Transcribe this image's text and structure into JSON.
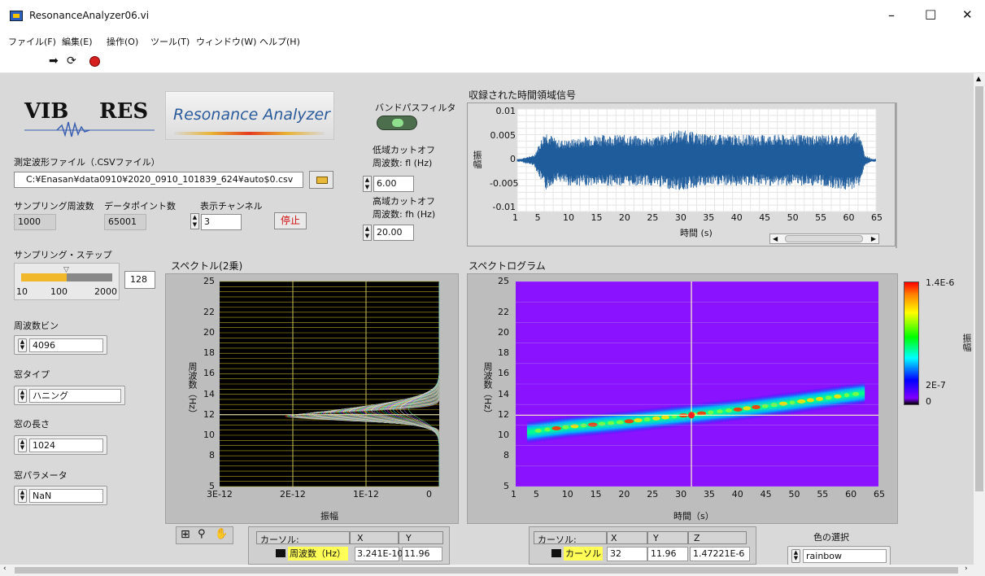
{
  "window": {
    "title": "ResonanceAnalyzer06.vi",
    "minimize": "–",
    "maximize": "□",
    "close": "✕"
  },
  "menu": [
    "ファイル(F)",
    "編集(E)",
    "操作(O)",
    "ツール(T)",
    "ウィンドウ(W)",
    "ヘルプ(H)"
  ],
  "logo": {
    "text_left": "VIB",
    "text_right": "RES",
    "banner": "Resonance Analyzer"
  },
  "file": {
    "label": "測定波形ファイル（.CSVファイル）",
    "path": "C:¥Enasan¥data0910¥2020_0910_101839_624¥auto$0.csv"
  },
  "sampling_rate": {
    "label": "サンプリング周波数",
    "value": "1000"
  },
  "data_points": {
    "label": "データポイント数",
    "value": "65001"
  },
  "display_channel": {
    "label": "表示チャンネル",
    "value": "3"
  },
  "stop_button": "停止",
  "bandpass": {
    "label": "バンドパスフィルタ",
    "low_label1": "低域カットオフ",
    "low_label2": "周波数: fl (Hz)",
    "low_value": "6.00",
    "high_label1": "高域カットオフ",
    "high_label2": "周波数: fh (Hz)",
    "high_value": "20.00"
  },
  "sampling_step": {
    "label": "サンプリング・ステップ",
    "value": "128",
    "ticks": [
      "10",
      "100",
      "2000"
    ],
    "fill_fraction": 0.5
  },
  "freq_bin": {
    "label": "周波数ビン",
    "value": "4096"
  },
  "window_type": {
    "label": "窓タイプ",
    "value": "ハニング"
  },
  "window_length": {
    "label": "窓の長さ",
    "value": "1024"
  },
  "window_param": {
    "label": "窓パラメータ",
    "value": "NaN"
  },
  "time_chart": {
    "title": "収録された時間領域信号",
    "ylabel": "振幅",
    "xlabel": "時間 (s)",
    "y_ticks": [
      "0.01",
      "0.005",
      "0",
      "-0.005",
      "-0.01"
    ],
    "x_ticks": [
      "1",
      "5",
      "10",
      "15",
      "20",
      "25",
      "30",
      "35",
      "40",
      "45",
      "50",
      "55",
      "60",
      "65"
    ]
  },
  "spectrum_chart": {
    "title": "スペクトル(2乗)",
    "ylabel": "周波数（Hz）",
    "xlabel": "振幅",
    "y_ticks": [
      "25",
      "22",
      "20",
      "18",
      "16",
      "14",
      "12",
      "10",
      "8",
      "5"
    ],
    "x_ticks": [
      "3E-12",
      "2E-12",
      "1E-12",
      "0"
    ]
  },
  "spectrogram": {
    "title": "スペクトログラム",
    "ylabel": "周波数（Hz）",
    "xlabel": "時間（s）",
    "y_ticks": [
      "25",
      "22",
      "20",
      "18",
      "16",
      "14",
      "12",
      "10",
      "8",
      "5"
    ],
    "x_ticks": [
      "1",
      "5",
      "10",
      "15",
      "20",
      "25",
      "30",
      "35",
      "40",
      "45",
      "50",
      "55",
      "60",
      "65"
    ],
    "colorbar_ticks": [
      "1.4E-6",
      "2E-7",
      "0"
    ],
    "colorbar_label": "振幅"
  },
  "cursor1": {
    "h_cursor": "カーソル:",
    "h_x": "X",
    "h_y": "Y",
    "name": "周波数（Hz）",
    "x": "3.241E-10",
    "y": "11.96"
  },
  "cursor2": {
    "h_cursor": "カーソル:",
    "h_x": "X",
    "h_y": "Y",
    "h_z": "Z",
    "name": "カーソル",
    "x": "32",
    "y": "11.96",
    "z": "1.47221E-6"
  },
  "color_select": {
    "label": "色の選択",
    "value": "rainbow"
  },
  "chart_data": [
    {
      "type": "line",
      "title": "収録された時間領域信号",
      "xlabel": "時間 (s)",
      "ylabel": "振幅",
      "xlim": [
        1,
        65
      ],
      "ylim": [
        -0.01,
        0.01
      ],
      "series": [
        {
          "x": [
            2,
            4,
            6,
            8,
            10,
            15,
            20,
            25,
            30,
            35,
            40,
            45,
            50,
            55,
            60,
            62,
            63,
            64
          ],
          "y_max": [
            0.0005,
            0.001,
            0.006,
            0.004,
            0.004,
            0.005,
            0.005,
            0.0045,
            0.006,
            0.005,
            0.005,
            0.005,
            0.005,
            0.005,
            0.005,
            0.006,
            0.001,
            0.0005
          ],
          "y_min": [
            -0.0005,
            -0.001,
            -0.006,
            -0.004,
            -0.005,
            -0.005,
            -0.005,
            -0.005,
            -0.006,
            -0.005,
            -0.005,
            -0.005,
            -0.005,
            -0.005,
            -0.006,
            -0.005,
            -0.001,
            -0.0005
          ]
        }
      ]
    },
    {
      "type": "line",
      "title": "スペクトル(2乗)",
      "xlabel": "振幅",
      "ylabel": "周波数（Hz）",
      "xlim": [
        3e-12,
        0
      ],
      "ylim": [
        5,
        25
      ],
      "peak_frequency": 12,
      "peak_amplitude": 2.1e-12,
      "cursor_x": [
        2e-12,
        1e-12
      ]
    },
    {
      "type": "heatmap",
      "title": "スペクトログラム",
      "xlabel": "時間（s）",
      "ylabel": "周波数（Hz）",
      "xlim": [
        1,
        65
      ],
      "ylim": [
        5,
        25
      ],
      "zlim": [
        0,
        1.4e-06
      ],
      "ridge": {
        "x": [
          3,
          10,
          20,
          30,
          40,
          50,
          62
        ],
        "y": [
          10.3,
          10.8,
          11.3,
          11.9,
          12.5,
          13.2,
          14.1
        ]
      },
      "cursor": {
        "x": 32,
        "y": 11.96
      }
    }
  ]
}
